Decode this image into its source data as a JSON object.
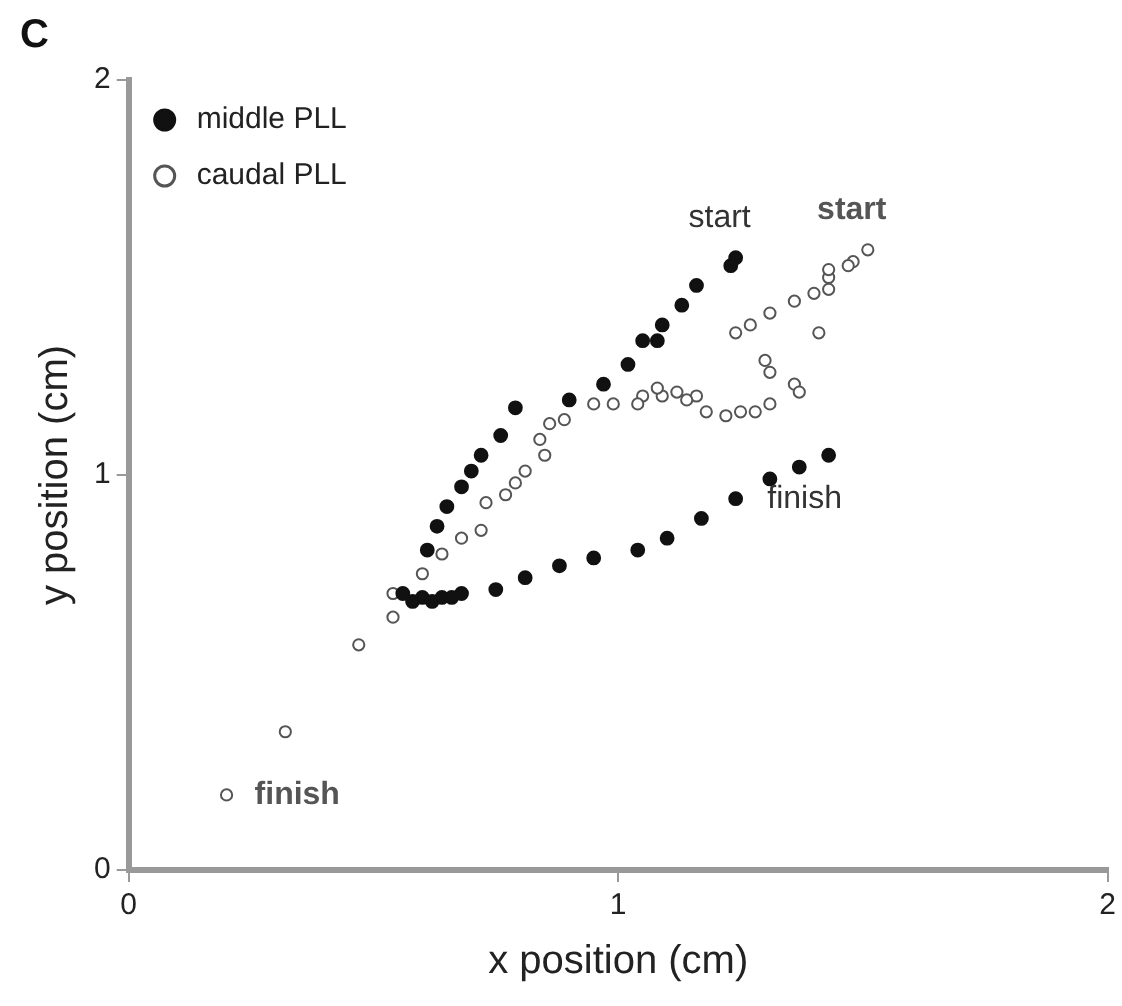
{
  "chart_data": {
    "type": "scatter",
    "xlabel": "x position (cm)",
    "ylabel": "y position (cm)",
    "xlim": [
      0,
      2
    ],
    "ylim": [
      0,
      2
    ],
    "xticks": [
      0,
      1,
      2
    ],
    "yticks": [
      0,
      1,
      2
    ],
    "grid": false,
    "legend": "top left",
    "marker": "circle",
    "annotations": [
      "C",
      {
        "text": "start",
        "x": 1.24,
        "y": 1.55
      },
      {
        "text": "start",
        "x": 1.51,
        "y": 1.57
      },
      {
        "text": "finish",
        "x": 1.43,
        "y": 1.05
      },
      {
        "text": "finish",
        "x": 0.2,
        "y": 0.19
      }
    ],
    "series": [
      {
        "name": "middle PLL",
        "color": "#111111",
        "x": [
          1.24,
          1.23,
          1.16,
          1.13,
          1.09,
          1.08,
          1.05,
          1.02,
          0.97,
          0.9,
          0.79,
          0.76,
          0.72,
          0.7,
          0.68,
          0.65,
          0.63,
          0.61,
          0.56,
          0.58,
          0.6,
          0.62,
          0.64,
          0.66,
          0.68,
          0.75,
          0.81,
          0.88,
          0.95,
          1.04,
          1.1,
          1.17,
          1.24,
          1.31,
          1.37,
          1.43
        ],
        "values": [
          1.55,
          1.53,
          1.48,
          1.43,
          1.38,
          1.34,
          1.34,
          1.28,
          1.23,
          1.19,
          1.17,
          1.1,
          1.05,
          1.01,
          0.97,
          0.92,
          0.87,
          0.81,
          0.7,
          0.68,
          0.69,
          0.68,
          0.69,
          0.69,
          0.7,
          0.71,
          0.74,
          0.77,
          0.79,
          0.81,
          0.84,
          0.89,
          0.94,
          0.99,
          1.02,
          1.05
        ]
      },
      {
        "name": "caudal PLL",
        "color": "#555555",
        "x": [
          1.51,
          1.48,
          1.47,
          1.43,
          1.43,
          1.43,
          1.4,
          1.36,
          1.31,
          1.27,
          1.24,
          1.41,
          1.3,
          1.31,
          1.36,
          1.37,
          1.31,
          1.28,
          1.25,
          1.22,
          1.18,
          1.16,
          1.12,
          1.09,
          1.05,
          1.14,
          1.08,
          1.04,
          0.99,
          0.95,
          0.89,
          0.86,
          0.84,
          0.85,
          0.81,
          0.79,
          0.77,
          0.73,
          0.72,
          0.68,
          0.64,
          0.6,
          0.54,
          0.54,
          0.47,
          0.32,
          0.2
        ],
        "values": [
          1.57,
          1.54,
          1.53,
          1.5,
          1.52,
          1.47,
          1.46,
          1.44,
          1.41,
          1.38,
          1.36,
          1.36,
          1.29,
          1.26,
          1.23,
          1.21,
          1.18,
          1.16,
          1.16,
          1.15,
          1.16,
          1.2,
          1.21,
          1.2,
          1.2,
          1.19,
          1.22,
          1.18,
          1.18,
          1.18,
          1.14,
          1.13,
          1.09,
          1.05,
          1.01,
          0.98,
          0.95,
          0.93,
          0.86,
          0.84,
          0.8,
          0.75,
          0.7,
          0.64,
          0.57,
          0.35,
          0.19
        ]
      }
    ]
  }
}
